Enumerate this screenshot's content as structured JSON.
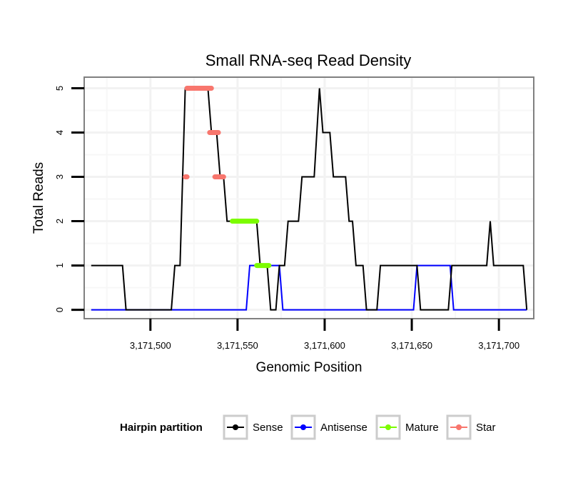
{
  "chart_data": {
    "type": "line",
    "title": "Small RNA-seq Read Density",
    "xlabel": "Genomic Position",
    "ylabel": "Total Reads",
    "xlim": [
      3171462,
      3171720
    ],
    "ylim": [
      -0.2,
      5.25
    ],
    "x_ticks": [
      3171500,
      3171550,
      3171600,
      3171650,
      3171700
    ],
    "x_tick_labels": [
      "3,171,500",
      "3,171,550",
      "3,171,600",
      "3,171,650",
      "3,171,700"
    ],
    "y_ticks": [
      0,
      1,
      2,
      3,
      4,
      5
    ],
    "y_tick_labels": [
      "0",
      "1",
      "2",
      "3",
      "4",
      "5"
    ],
    "grid": true,
    "legend": {
      "title": "Hairpin partition",
      "position": "bottom",
      "entries": [
        "Sense",
        "Antisense",
        "Mature",
        "Star"
      ]
    },
    "series": [
      {
        "name": "Sense",
        "color": "#000000",
        "style": "line",
        "points": [
          [
            3171466,
            1
          ],
          [
            3171484,
            1
          ],
          [
            3171486,
            0
          ],
          [
            3171512,
            0
          ],
          [
            3171514,
            1
          ],
          [
            3171517,
            1
          ],
          [
            3171520,
            5
          ],
          [
            3171533,
            5
          ],
          [
            3171535,
            4
          ],
          [
            3171538,
            4
          ],
          [
            3171540,
            3
          ],
          [
            3171542,
            3
          ],
          [
            3171544,
            2
          ],
          [
            3171561,
            2
          ],
          [
            3171563,
            1
          ],
          [
            3171567,
            1
          ],
          [
            3171569,
            0
          ],
          [
            3171572,
            0
          ],
          [
            3171574,
            1
          ],
          [
            3171577,
            1
          ],
          [
            3171579,
            2
          ],
          [
            3171585,
            2
          ],
          [
            3171587,
            3
          ],
          [
            3171594,
            3
          ],
          [
            3171597,
            5
          ],
          [
            3171599,
            4
          ],
          [
            3171603,
            4
          ],
          [
            3171605,
            3
          ],
          [
            3171612,
            3
          ],
          [
            3171614,
            2
          ],
          [
            3171616,
            2
          ],
          [
            3171618,
            1
          ],
          [
            3171622,
            1
          ],
          [
            3171624,
            0
          ],
          [
            3171630,
            0
          ],
          [
            3171632,
            1
          ],
          [
            3171650,
            1
          ],
          [
            3171653,
            1
          ],
          [
            3171655,
            0
          ],
          [
            3171671,
            0
          ],
          [
            3171673,
            1
          ],
          [
            3171693,
            1
          ],
          [
            3171695,
            2
          ],
          [
            3171697,
            1
          ],
          [
            3171714,
            1
          ],
          [
            3171716,
            0
          ]
        ]
      },
      {
        "name": "Antisense",
        "color": "#0000ff",
        "style": "line",
        "points": [
          [
            3171466,
            0
          ],
          [
            3171555,
            0
          ],
          [
            3171557,
            1
          ],
          [
            3171574,
            1
          ],
          [
            3171576,
            0
          ],
          [
            3171651,
            0
          ],
          [
            3171653,
            1
          ],
          [
            3171672,
            1
          ],
          [
            3171674,
            0
          ],
          [
            3171716,
            0
          ]
        ]
      },
      {
        "name": "Mature",
        "color": "#7cfc00",
        "style": "segments",
        "segments": [
          [
            3171547,
            3171561,
            2
          ],
          [
            3171561,
            3171568,
            1
          ]
        ]
      },
      {
        "name": "Star",
        "color": "#f8766d",
        "style": "segments",
        "segments": [
          [
            3171520,
            3171521,
            3
          ],
          [
            3171521,
            3171535,
            5
          ],
          [
            3171534,
            3171539,
            4
          ],
          [
            3171537,
            3171542,
            3
          ]
        ]
      }
    ]
  }
}
